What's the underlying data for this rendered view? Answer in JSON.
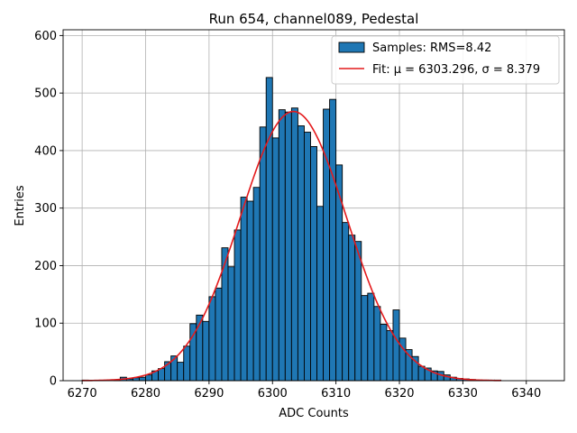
{
  "chart_data": {
    "type": "bar",
    "title": "Run 654, channel089, Pedestal",
    "xlabel": "ADC Counts",
    "ylabel": "Entries",
    "xlim": [
      6267,
      6346
    ],
    "ylim": [
      0,
      610
    ],
    "x_ticks": [
      6270,
      6280,
      6290,
      6300,
      6310,
      6320,
      6330,
      6340
    ],
    "y_ticks": [
      0,
      100,
      200,
      300,
      400,
      500,
      600
    ],
    "grid": true,
    "legend_position": "top-right",
    "histogram": {
      "name": "Samples: RMS=8.42",
      "bin_width": 1,
      "bin_start": 6270,
      "counts": [
        1,
        0,
        0,
        0,
        0,
        1,
        6,
        3,
        5,
        6,
        10,
        17,
        21,
        33,
        43,
        32,
        60,
        99,
        114,
        103,
        146,
        161,
        231,
        198,
        262,
        319,
        312,
        336,
        441,
        527,
        422,
        471,
        467,
        474,
        443,
        432,
        407,
        303,
        472,
        489,
        375,
        275,
        253,
        242,
        148,
        152,
        129,
        98,
        87,
        123,
        74,
        54,
        42,
        25,
        22,
        17,
        16,
        10,
        6,
        4,
        3,
        2,
        1,
        1,
        1,
        1
      ],
      "color": "#1f77b4"
    },
    "fit": {
      "name": "Fit: μ = 6303.296, σ = 8.379",
      "mu": 6303.296,
      "sigma": 8.379,
      "peak": 468,
      "color": "#e41a1c"
    }
  }
}
